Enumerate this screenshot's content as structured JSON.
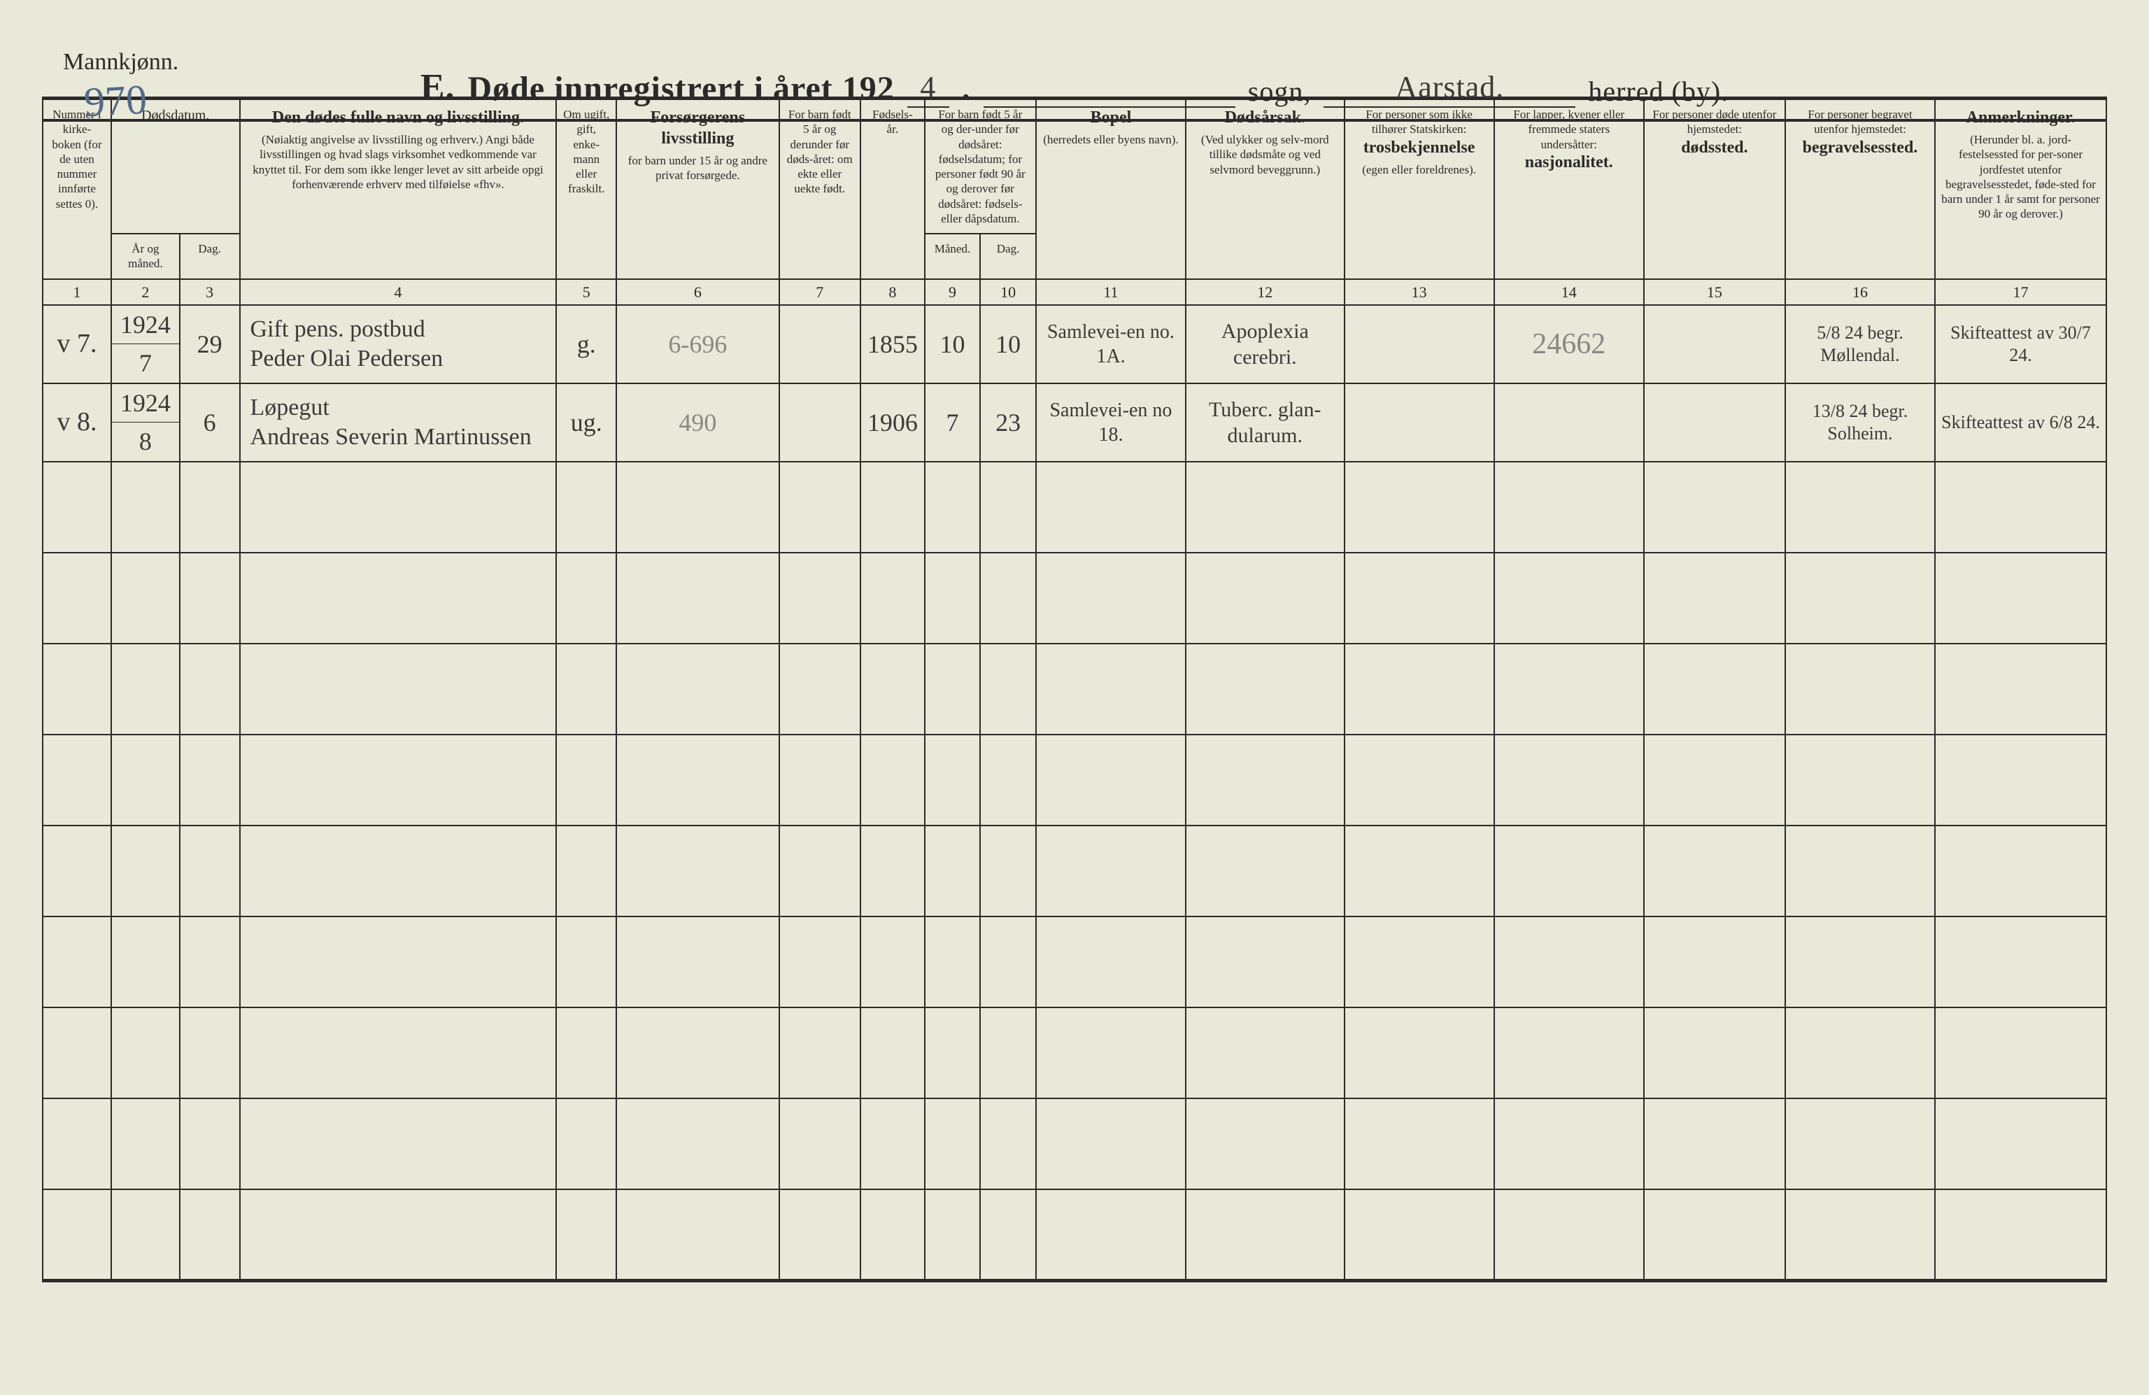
{
  "page": {
    "gender_label": "Mannkjønn.",
    "page_number_handwritten": "970",
    "title_prefix": "E.",
    "title_main": "Døde innregistrert i året 192",
    "year_suffix": "4",
    "title_period": ".",
    "sogn_blank": "",
    "sogn_label": "sogn,",
    "herred_value": "Aarstad.",
    "herred_label": "herred (by)."
  },
  "columns": {
    "c1": {
      "bold": "",
      "text": "Nummer i kirke-boken (for de uten nummer innførte settes 0)."
    },
    "c2_3_group": "Dødsdatum.",
    "c2": "År og måned.",
    "c3": "Dag.",
    "c4": {
      "bold": "Den dødes fulle navn og livsstilling.",
      "small": "(Nøiaktig angivelse av livsstilling og erhverv.) Angi både livsstillingen og hvad slags virksomhet vedkommende var knyttet til. For dem som ikke lenger levet av sitt arbeide opgi forhenværende erhverv med tilføielse «fhv»."
    },
    "c5": "Om ugift, gift, enke-mann eller fraskilt.",
    "c6": {
      "bold": "Forsørgerens livsstilling",
      "small": "for barn under 15 år og andre privat forsørgede."
    },
    "c7": "For barn født 5 år og derunder før døds-året: om ekte eller uekte født.",
    "c8": "Fødsels-år.",
    "c9_10_top": "For barn født 5 år og der-under før dødsåret: fødselsdatum; for personer født 90 år og derover før dødsåret: fødsels- eller dåpsdatum.",
    "c9": "Måned.",
    "c10": "Dag.",
    "c11": {
      "bold": "Bopel",
      "small": "(herredets eller byens navn)."
    },
    "c12": {
      "bold": "Dødsårsak.",
      "small": "(Ved ulykker og selv-mord tillike dødsmåte og ved selvmord beveggrunn.)"
    },
    "c13": {
      "text": "For personer som ikke tilhører Statskirken:",
      "bold": "trosbekjennelse",
      "small": "(egen eller foreldrenes)."
    },
    "c14": {
      "text": "For lapper, kvener eller fremmede staters undersåtter:",
      "bold": "nasjonalitet."
    },
    "c15": {
      "text": "For personer døde utenfor hjemstedet:",
      "bold": "dødssted."
    },
    "c16": {
      "text": "For personer begravet utenfor hjemstedet:",
      "bold": "begravelsessted."
    },
    "c17": {
      "bold": "Anmerkninger.",
      "small": "(Herunder bl. a. jord-festelsessted for per-soner jordfestet utenfor begravelsesstedet, føde-sted for barn under 1 år samt for personer 90 år og derover.)"
    }
  },
  "colnums": [
    "1",
    "2",
    "3",
    "4",
    "5",
    "6",
    "7",
    "8",
    "9",
    "10",
    "11",
    "12",
    "13",
    "14",
    "15",
    "16",
    "17"
  ],
  "rows": [
    {
      "num": "v 7.",
      "year_month_top": "1924",
      "year_month_bot": "7",
      "day": "29",
      "name_line1": "Gift pens. postbud",
      "name_line2": "Peder Olai Pedersen",
      "marital": "g.",
      "provider": "6-696",
      "c7": "",
      "birth_year": "1855",
      "birth_month": "10",
      "birth_day": "10",
      "bopel": "Samlevei-en no. 1A.",
      "cause": "Apoplexia cerebri.",
      "c13": "",
      "c14": "24662",
      "c15": "",
      "burial": "5/8 24 begr. Møllendal.",
      "remarks": "Skifteattest av 30/7 24."
    },
    {
      "num": "v 8.",
      "year_month_top": "1924",
      "year_month_bot": "8",
      "day": "6",
      "name_line1": "Løpegut",
      "name_line2": "Andreas Severin Martinussen",
      "marital": "ug.",
      "provider": "490",
      "c7": "",
      "birth_year": "1906",
      "birth_month": "7",
      "birth_day": "23",
      "bopel": "Samlevei-en no 18.",
      "cause": "Tuberc. glan-dularum.",
      "c13": "",
      "c14": "",
      "c15": "",
      "burial": "13/8 24 begr. Solheim.",
      "remarks": "Skifteattest av 6/8 24."
    }
  ],
  "empty_row_count": 9,
  "style": {
    "background_color": "#e8e9d8",
    "border_color": "#2a2a2a",
    "handwriting_color": "#3a3a3a",
    "handwriting_blue": "#3a6a9a",
    "pencil_color": "#888888",
    "header_fontsize": 48,
    "body_fontsize": 36,
    "th_fontsize": 20
  }
}
